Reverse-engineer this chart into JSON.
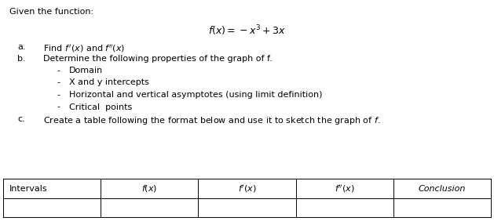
{
  "title_text": "Given the function:",
  "function_display": "$f(x)=-x^3+3x$",
  "item_a_prefix": "a.",
  "item_a_text": "Find $f\\,' (x)$ and $f''(x)$",
  "item_b_prefix": "b.",
  "item_b_text": "Determine the following properties of the graph of f.",
  "bullets": [
    "Domain",
    "X and y intercepts",
    "Horizontal and vertical asymptotes (using limit definition)",
    "Critical  points"
  ],
  "item_c_prefix": "c.",
  "item_c_text": "Create a table following the format below and use it to sketch the graph of $f$.",
  "table_headers": [
    "Intervals",
    "$f(x)$",
    "$f'(x)$",
    "$f''(x)$",
    "Conclusion"
  ],
  "bg_color": "#ffffff",
  "text_color": "#000000",
  "font_size": 8.0,
  "func_font_size": 9.0
}
